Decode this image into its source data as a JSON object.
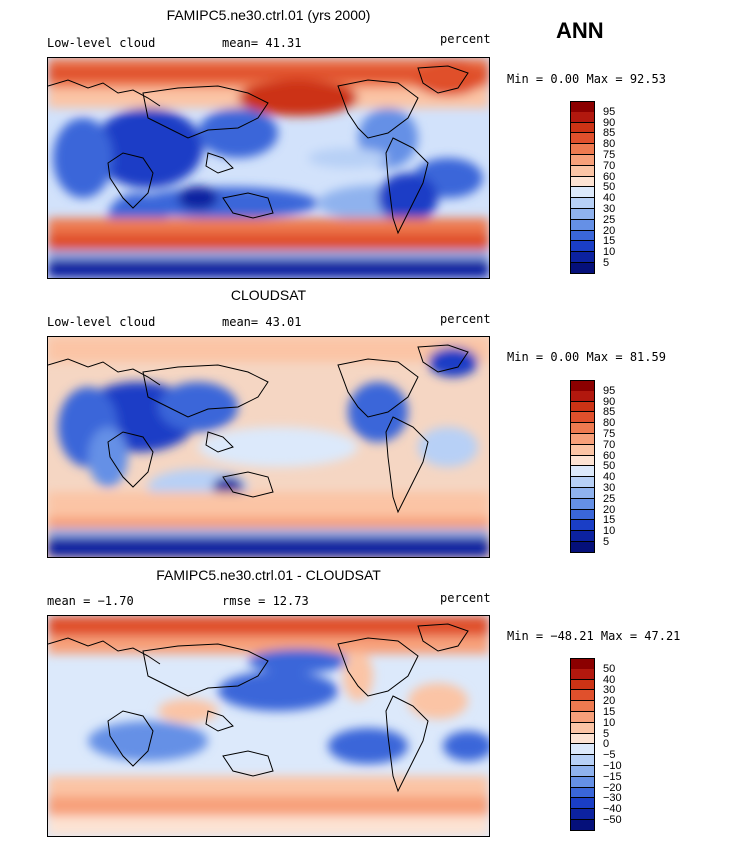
{
  "season": "ANN",
  "panels": [
    {
      "id": "model",
      "title": "FAMIPC5.ne30.ctrl.01 (yrs 2000)",
      "left_label": "Low-level cloud",
      "mid_label": "mean=  41.31",
      "units": "percent",
      "minmax": "Min =   0.00 Max =  92.53"
    },
    {
      "id": "obs",
      "title": "CLOUDSAT",
      "left_label": "Low-level cloud",
      "mid_label": "mean=  43.01",
      "units": "percent",
      "minmax": "Min =   0.00 Max =  81.59"
    },
    {
      "id": "diff",
      "title": "FAMIPC5.ne30.ctrl.01 - CLOUDSAT",
      "left_label": "mean =  −1.70",
      "mid_label": "rmse =  12.73",
      "units": "percent",
      "minmax": "Min = −48.21 Max =  47.21"
    }
  ],
  "colorbars": {
    "abs": {
      "labels": [
        "95",
        "90",
        "85",
        "80",
        "75",
        "70",
        "60",
        "50",
        "40",
        "30",
        "25",
        "20",
        "15",
        "10",
        "5"
      ],
      "colors": [
        "#8b0000",
        "#b2180e",
        "#cc3315",
        "#e0502c",
        "#ee7a50",
        "#f7a07a",
        "#fbc4a5",
        "#fde3d3",
        "#dce9fb",
        "#b7d0f6",
        "#8fb2ee",
        "#6590e6",
        "#3a66d9",
        "#1a3ec6",
        "#0c22a0",
        "#05107a"
      ]
    },
    "diff": {
      "labels": [
        "50",
        "40",
        "30",
        "20",
        "15",
        "10",
        "5",
        "0",
        "−5",
        "−10",
        "−15",
        "−20",
        "−30",
        "−40",
        "−50"
      ],
      "colors": [
        "#8b0000",
        "#b2180e",
        "#cc3315",
        "#e0502c",
        "#ee7a50",
        "#f7a07a",
        "#fbc4a5",
        "#fde3d3",
        "#dce9fb",
        "#b7d0f6",
        "#8fb2ee",
        "#6590e6",
        "#3a66d9",
        "#1a3ec6",
        "#0c22a0",
        "#05107a"
      ]
    }
  }
}
